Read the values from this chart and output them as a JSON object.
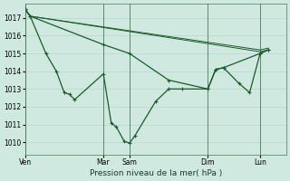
{
  "background_color": "#cfe8e0",
  "grid_color": "#b8d8cc",
  "line_color": "#1a5c2a",
  "xlabel": "Pression niveau de la mer( hPa )",
  "ylim": [
    1009.3,
    1017.8
  ],
  "yticks": [
    1010,
    1011,
    1012,
    1013,
    1014,
    1015,
    1016,
    1017
  ],
  "xlim_days": [
    0,
    5.0
  ],
  "vline_positions": [
    0,
    1.5,
    2.0,
    3.5,
    4.5
  ],
  "xtick_labels": [
    "Ven",
    "Mar",
    "Sam",
    "Dim",
    "Lun"
  ],
  "xtick_day_positions": [
    0.0,
    1.5,
    2.0,
    3.5,
    4.5
  ],
  "line1_x": [
    0.0,
    0.1,
    0.4,
    0.6,
    0.75,
    0.85,
    0.95,
    1.5,
    1.65,
    1.75,
    1.9,
    2.0,
    2.1,
    2.5,
    2.75,
    3.0,
    3.5,
    3.65,
    3.8,
    4.5,
    4.65
  ],
  "line1_y": [
    1017.5,
    1017.1,
    1015.0,
    1014.0,
    1012.8,
    1012.7,
    1012.4,
    1013.85,
    1011.1,
    1010.85,
    1010.05,
    1009.95,
    1010.35,
    1012.3,
    1013.0,
    1013.0,
    1013.0,
    1014.1,
    1014.2,
    1015.0,
    1015.2
  ],
  "line2_x": [
    0.0,
    0.1,
    4.5,
    4.65
  ],
  "line2_y": [
    1017.5,
    1017.1,
    1015.2,
    1015.3
  ],
  "line3_x": [
    0.0,
    0.1,
    4.5,
    4.65
  ],
  "line3_y": [
    1017.5,
    1017.1,
    1015.1,
    1015.2
  ],
  "line4_x": [
    0.0,
    0.1,
    1.5,
    2.0,
    2.75,
    3.5,
    3.65,
    3.8,
    4.1,
    4.3,
    4.5,
    4.65
  ],
  "line4_y": [
    1017.5,
    1017.1,
    1015.5,
    1015.0,
    1013.5,
    1013.0,
    1014.1,
    1014.2,
    1013.3,
    1012.8,
    1015.0,
    1015.2
  ]
}
